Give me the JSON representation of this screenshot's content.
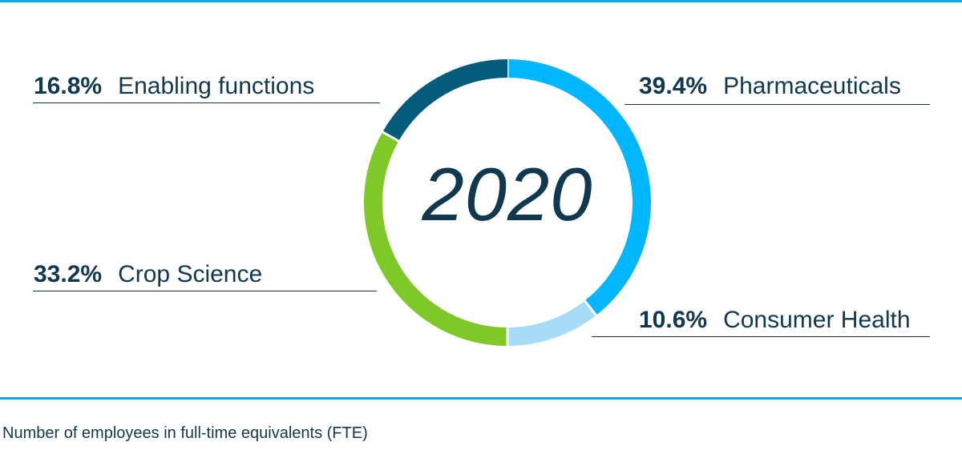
{
  "chart_data": {
    "type": "pie",
    "center_label": "2020",
    "caption": "Number of employees in full-time equivalents (FTE)",
    "start_angle_deg": 0,
    "direction": "clockwise",
    "slices": [
      {
        "name": "Pharmaceuticals",
        "value": 39.4,
        "label": "39.4%",
        "color": "#00b6ff"
      },
      {
        "name": "Consumer Health",
        "value": 10.6,
        "label": "10.6%",
        "color": "#a6dcf7"
      },
      {
        "name": "Crop Science",
        "value": 33.2,
        "label": "33.2%",
        "color": "#7ec928"
      },
      {
        "name": "Enabling functions",
        "value": 16.8,
        "label": "16.8%",
        "color": "#045c7d"
      }
    ]
  },
  "colors": {
    "rule": "#10a8e0",
    "text": "#10384f"
  }
}
